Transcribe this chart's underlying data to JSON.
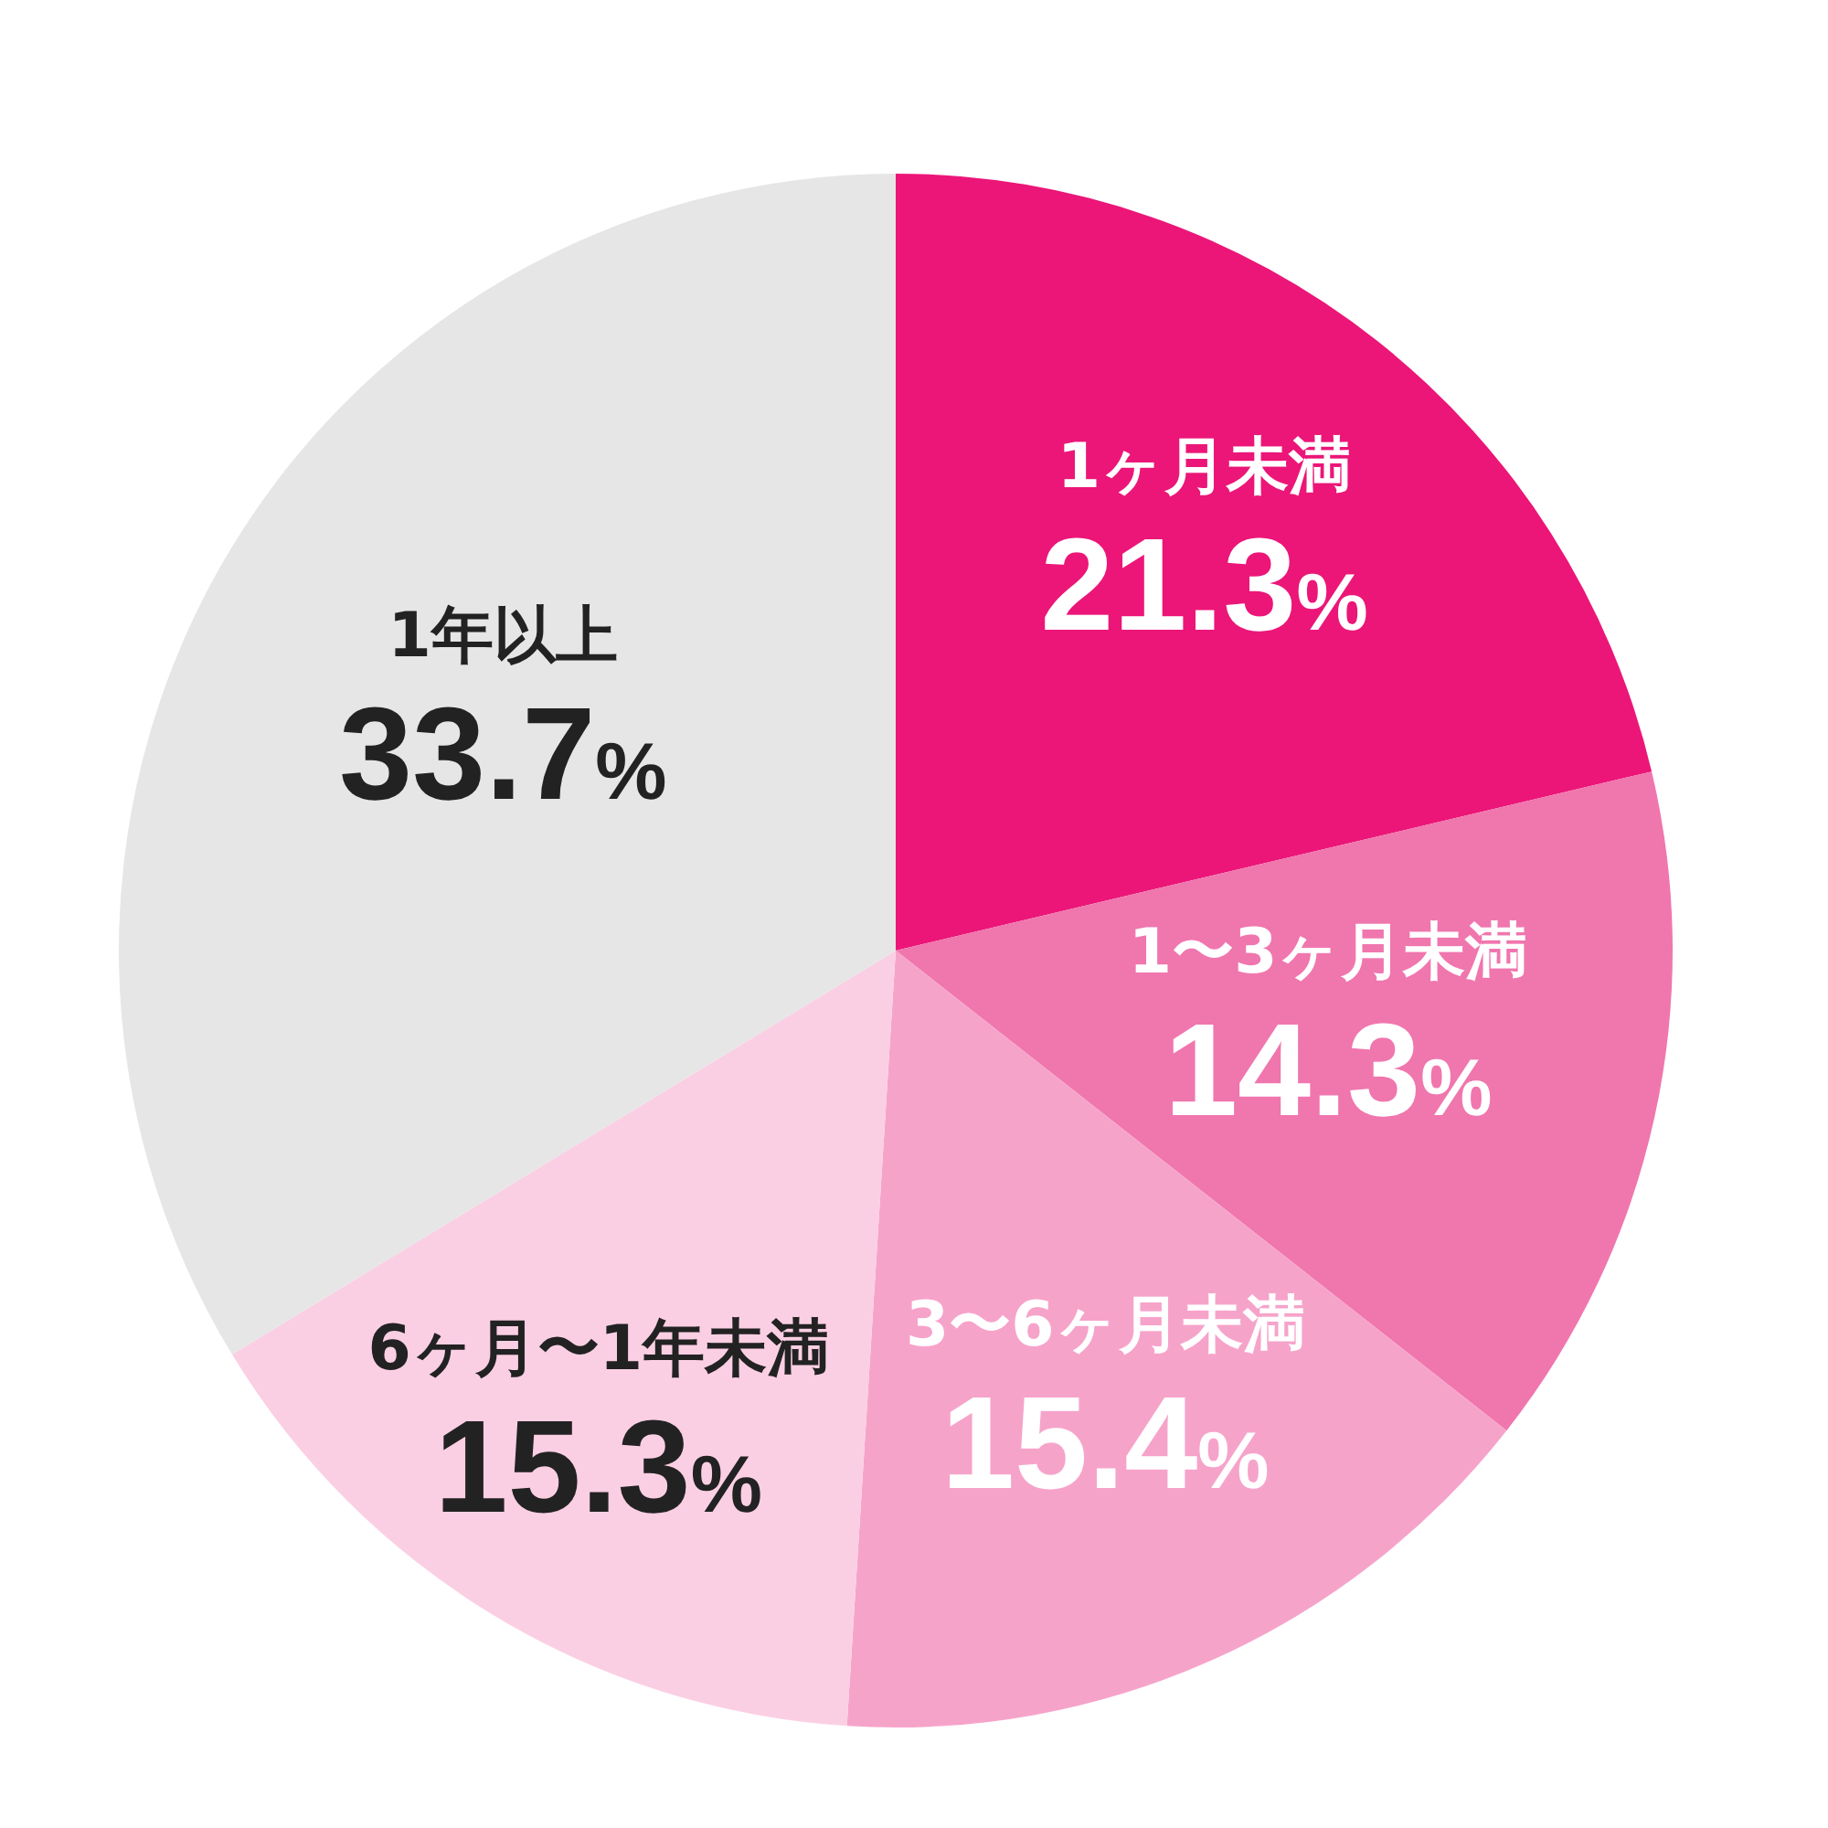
{
  "chart_data": {
    "type": "pie",
    "categories": [
      "1ヶ月未満",
      "1〜3ヶ月未満",
      "3〜6ヶ月未満",
      "6ヶ月〜1年未満",
      "1年以上"
    ],
    "values": [
      21.3,
      14.3,
      15.4,
      15.3,
      33.7
    ],
    "value_labels": [
      "21.3%",
      "14.3%",
      "15.4%",
      "15.3%",
      "33.7%"
    ],
    "colors": [
      "#eb1678",
      "#f076ae",
      "#f6a3ca",
      "#fbcfe3",
      "#e6e6e6"
    ],
    "legend": false
  }
}
